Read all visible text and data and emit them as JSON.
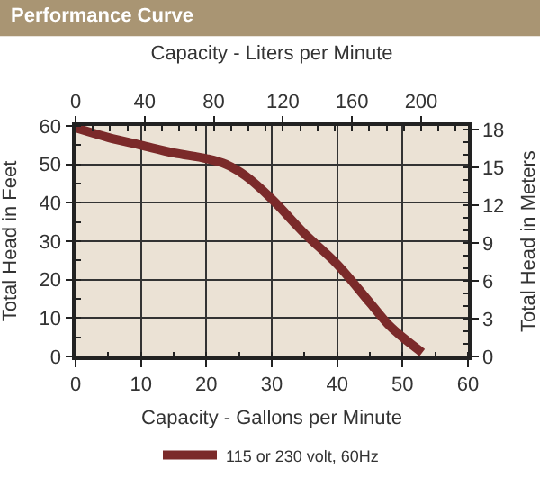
{
  "chart_data": {
    "type": "line",
    "title": "Performance Curve",
    "xlabel": "Capacity - Gallons per Minute",
    "x2label": "Capacity - Liters per Minute",
    "ylabel": "Total Head in Feet",
    "y2label": "Total Head in Meters",
    "x": [
      0,
      5,
      10,
      15,
      20,
      23,
      26,
      30,
      35,
      40,
      45,
      48,
      50,
      53
    ],
    "series": [
      {
        "name": "115 or 230 volt, 60Hz",
        "color": "#7b2a2a",
        "values": [
          59.5,
          57,
          55,
          53,
          51.5,
          50,
          47,
          41,
          32,
          24,
          14,
          8,
          5,
          1
        ]
      }
    ],
    "xlim": [
      0,
      60
    ],
    "xticks": [
      0,
      10,
      20,
      30,
      40,
      50,
      60
    ],
    "x2lim": [
      0,
      227.1
    ],
    "x2ticks": [
      0,
      40,
      80,
      120,
      160,
      200
    ],
    "ylim": [
      0,
      60
    ],
    "yticks": [
      0,
      10,
      20,
      30,
      40,
      50,
      60
    ],
    "y2lim": [
      0,
      18.29
    ],
    "y2ticks": [
      0,
      3,
      6,
      9,
      12,
      15,
      18
    ],
    "grid": true,
    "legend": "bottom",
    "line_style": "solid",
    "marker": "none"
  }
}
